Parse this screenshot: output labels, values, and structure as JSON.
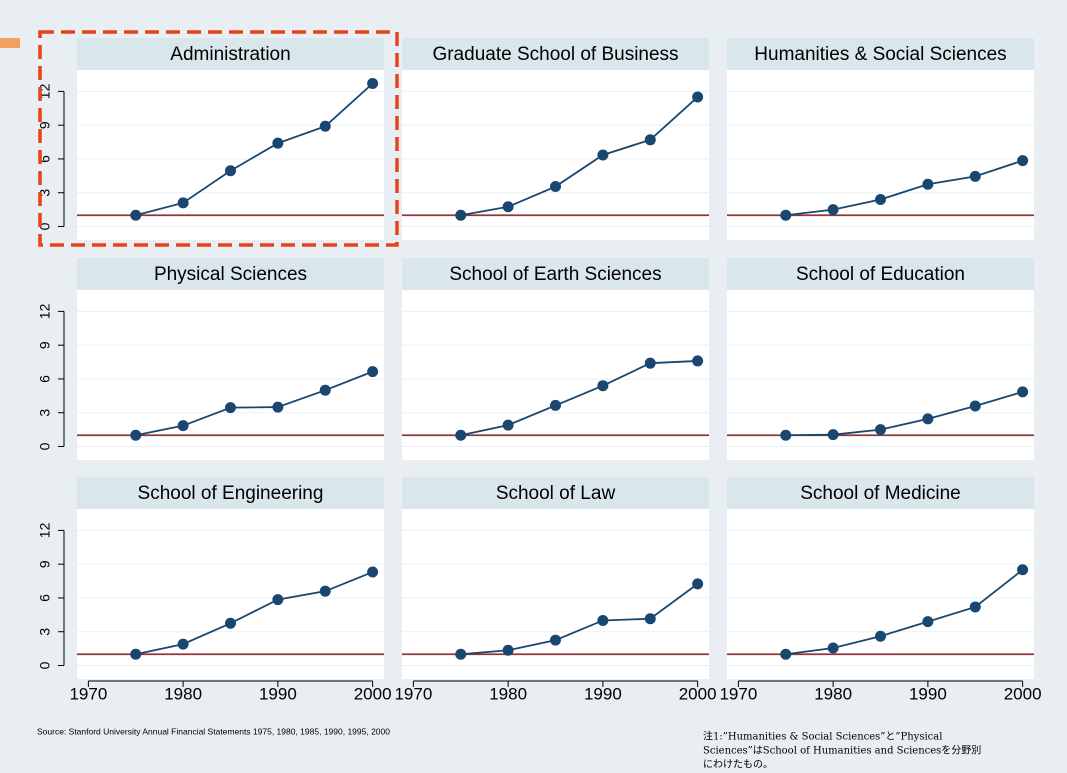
{
  "chart_data": [
    {
      "type": "line",
      "title": "Administration",
      "x": [
        1975,
        1980,
        1985,
        1990,
        1995,
        2000
      ],
      "values": [
        1,
        2.1,
        4.95,
        7.4,
        8.9,
        12.7
      ],
      "color": "#1a476f"
    },
    {
      "type": "line",
      "title": "Graduate School of Business",
      "x": [
        1975,
        1980,
        1985,
        1990,
        1995,
        2000
      ],
      "values": [
        1,
        1.75,
        3.55,
        6.35,
        7.7,
        11.5
      ],
      "color": "#1a476f"
    },
    {
      "type": "line",
      "title": "Humanities & Social Sciences",
      "x": [
        1975,
        1980,
        1985,
        1990,
        1995,
        2000
      ],
      "values": [
        1,
        1.5,
        2.4,
        3.75,
        4.45,
        5.85
      ],
      "color": "#1a476f"
    },
    {
      "type": "line",
      "title": "Physical Sciences",
      "x": [
        1975,
        1980,
        1985,
        1990,
        1995,
        2000
      ],
      "values": [
        1,
        1.85,
        3.45,
        3.5,
        5.0,
        6.65
      ],
      "color": "#1a476f"
    },
    {
      "type": "line",
      "title": "School of Earth Sciences",
      "x": [
        1975,
        1980,
        1985,
        1990,
        1995,
        2000
      ],
      "values": [
        1,
        1.9,
        3.65,
        5.4,
        7.4,
        7.6
      ],
      "color": "#1a476f"
    },
    {
      "type": "line",
      "title": "School of Education",
      "x": [
        1975,
        1980,
        1985,
        1990,
        1995,
        2000
      ],
      "values": [
        1,
        1.05,
        1.5,
        2.45,
        3.6,
        4.85
      ],
      "color": "#1a476f"
    },
    {
      "type": "line",
      "title": "School of Engineering",
      "x": [
        1975,
        1980,
        1985,
        1990,
        1995,
        2000
      ],
      "values": [
        1,
        1.9,
        3.75,
        5.85,
        6.6,
        8.3
      ],
      "color": "#1a476f"
    },
    {
      "type": "line",
      "title": "School of Law",
      "x": [
        1975,
        1980,
        1985,
        1990,
        1995,
        2000
      ],
      "values": [
        1,
        1.35,
        2.25,
        4.0,
        4.15,
        7.25
      ],
      "color": "#1a476f"
    },
    {
      "type": "line",
      "title": "School of Medicine",
      "x": [
        1975,
        1980,
        1985,
        1990,
        1995,
        2000
      ],
      "values": [
        1,
        1.55,
        2.6,
        3.9,
        5.2,
        8.5
      ],
      "color": "#1a476f"
    }
  ],
  "axes": {
    "xlim": [
      1968.8,
      2001.2
    ],
    "xticks": [
      1970,
      1980,
      1990,
      2000
    ],
    "ylim": [
      -1.2,
      13.9
    ],
    "yticks": [
      0,
      3,
      6,
      9,
      12
    ],
    "grid": true
  },
  "reference_line": {
    "value": 1,
    "color": "#90353b"
  },
  "source": "Source: Stanford University Annual Financial Statements 1975, 1980, 1985, 1990, 1995, 2000",
  "note": [
    "注1:”Humanities & Social Sciences”と”Physical",
    "Sciences”はSchool of Humanities and Sciencesを分野別",
    "にわけたもの。"
  ]
}
